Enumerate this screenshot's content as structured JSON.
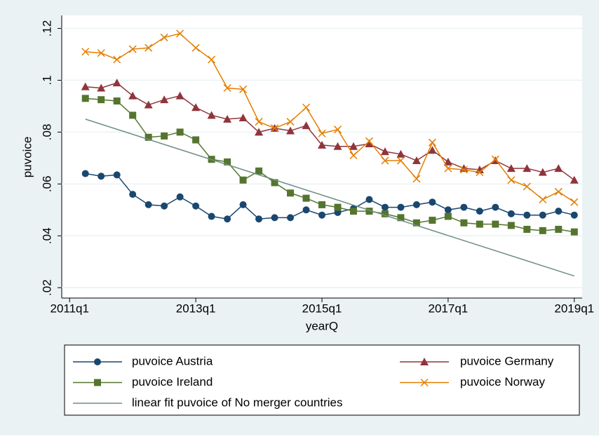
{
  "chart_data": {
    "type": "line",
    "xlabel": "yearQ",
    "ylabel": "puvoice",
    "x": [
      205,
      206,
      207,
      208,
      209,
      210,
      211,
      212,
      213,
      214,
      215,
      216,
      217,
      218,
      219,
      220,
      221,
      222,
      223,
      224,
      225,
      226,
      227,
      228,
      229,
      230,
      231,
      232,
      233,
      234,
      235,
      236
    ],
    "xlim": [
      203.5,
      236.5
    ],
    "xticks": [
      {
        "value": 204,
        "label": "2011q1"
      },
      {
        "value": 212,
        "label": "2013q1"
      },
      {
        "value": 220,
        "label": "2015q1"
      },
      {
        "value": 228,
        "label": "2017q1"
      },
      {
        "value": 236,
        "label": "2019q1"
      }
    ],
    "ylim": [
      0.016,
      0.125
    ],
    "yticks": [
      {
        "value": 0.02,
        "label": ".02"
      },
      {
        "value": 0.04,
        "label": ".04"
      },
      {
        "value": 0.06,
        "label": ".06"
      },
      {
        "value": 0.08,
        "label": ".08"
      },
      {
        "value": 0.1,
        "label": ".1"
      },
      {
        "value": 0.12,
        "label": ".12"
      }
    ],
    "grid": true,
    "series": [
      {
        "name": "puvoice Austria",
        "color": "#1a476f",
        "marker": "circle",
        "values": [
          0.064,
          0.063,
          0.0635,
          0.056,
          0.052,
          0.0515,
          0.055,
          0.0515,
          0.0475,
          0.0465,
          0.052,
          0.0465,
          0.047,
          0.047,
          0.05,
          0.048,
          0.049,
          0.0505,
          0.054,
          0.051,
          0.051,
          0.052,
          0.053,
          0.05,
          0.051,
          0.0495,
          0.051,
          0.0485,
          0.048,
          0.048,
          0.0495,
          0.048
        ]
      },
      {
        "name": "puvoice Germany",
        "color": "#90353b",
        "marker": "triangle",
        "values": [
          0.0975,
          0.097,
          0.099,
          0.094,
          0.0905,
          0.0925,
          0.094,
          0.0895,
          0.0865,
          0.085,
          0.0855,
          0.08,
          0.0815,
          0.0805,
          0.0825,
          0.075,
          0.0745,
          0.0745,
          0.0755,
          0.0725,
          0.0715,
          0.069,
          0.073,
          0.0685,
          0.066,
          0.0655,
          0.069,
          0.066,
          0.066,
          0.0645,
          0.066,
          0.0615
        ]
      },
      {
        "name": "puvoice Ireland",
        "color": "#55752f",
        "marker": "square",
        "values": [
          0.093,
          0.0925,
          0.092,
          0.0865,
          0.078,
          0.0785,
          0.08,
          0.077,
          0.0695,
          0.0685,
          0.0615,
          0.065,
          0.0605,
          0.0565,
          0.0545,
          0.052,
          0.051,
          0.0495,
          0.0495,
          0.0485,
          0.047,
          0.045,
          0.046,
          0.0475,
          0.045,
          0.0445,
          0.0445,
          0.044,
          0.0425,
          0.042,
          0.0425,
          0.0415
        ]
      },
      {
        "name": "puvoice Norway",
        "color": "#e37e00",
        "marker": "x",
        "values": [
          0.111,
          0.1105,
          0.108,
          0.112,
          0.1125,
          0.1165,
          0.118,
          0.1125,
          0.108,
          0.097,
          0.0965,
          0.084,
          0.0815,
          0.084,
          0.0895,
          0.0795,
          0.081,
          0.071,
          0.0765,
          0.069,
          0.069,
          0.062,
          0.076,
          0.066,
          0.0655,
          0.0645,
          0.0695,
          0.0615,
          0.059,
          0.054,
          0.057,
          0.053
        ]
      },
      {
        "name": "linear fit puvoice of No merger countries",
        "color": "#6e8e84",
        "x": [
          205,
          236
        ],
        "values": [
          0.085,
          0.0245
        ]
      }
    ]
  }
}
